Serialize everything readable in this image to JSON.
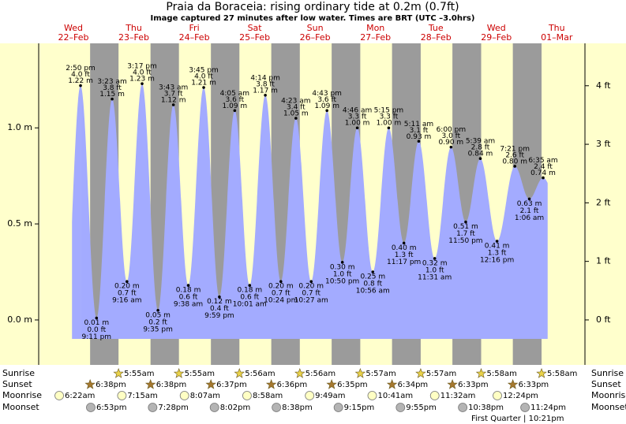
{
  "chart_data": {
    "type": "tide",
    "title": "Praia da Boraceia: rising  ordinary tide at 0.2m (0.7ft)",
    "subtitle": "Image captured 27 minutes after low water. Times are BRT (UTC –3.0hrs)",
    "xlim": [
      -1.8,
      215.2
    ],
    "ylim": [
      -0.234,
      1.44
    ],
    "yticks": [
      {
        "value": 0,
        "label": "0.0 m"
      },
      {
        "value": 0.5,
        "label": "0.5 m"
      },
      {
        "value": 1,
        "label": "1.0 m"
      }
    ],
    "y2lim": [
      -0.768,
      4.724
    ],
    "y2ticks": [
      {
        "value": 0,
        "label": "0 ft"
      },
      {
        "value": 1,
        "label": "1 ft"
      },
      {
        "value": 2,
        "label": "2 ft"
      },
      {
        "value": 3,
        "label": "3 ft"
      },
      {
        "value": 4,
        "label": "4 ft"
      }
    ],
    "colors": {
      "water": "#a3abff",
      "day": "#ffffcc",
      "night": "#9b9b9b",
      "day_label": "#cc0000"
    },
    "row_labels": {
      "sunrise": "Sunrise",
      "sunset": "Sunset",
      "moonrise": "Moonrise",
      "moonset": "Moonset"
    },
    "days": [
      {
        "weekday": "Wed",
        "date": "22–Feb",
        "sunset": "6:38pm",
        "moonrise": "6:22am",
        "moonset": "6:53pm",
        "tides": [
          {
            "time": "2:50 pm",
            "height": 1.22,
            "height_label": "1.22 m",
            "height_ft_label": "4.0 ft"
          },
          {
            "time": "9:11 pm",
            "height": 0.01,
            "height_label": "0.01 m",
            "height_ft_label": "0.0 ft"
          }
        ]
      },
      {
        "weekday": "Thu",
        "date": "23–Feb",
        "sunrise": "5:55am",
        "sunset": "6:38pm",
        "moonrise": "7:15am",
        "moonset": "7:28pm",
        "tides": [
          {
            "time": "3:23 am",
            "height": 1.15,
            "height_label": "1.15 m",
            "height_ft_label": "3.8 ft"
          },
          {
            "time": "9:16 am",
            "height": 0.2,
            "height_label": "0.20 m",
            "height_ft_label": "0.7 ft"
          },
          {
            "time": "3:17 pm",
            "height": 1.23,
            "height_label": "1.23 m",
            "height_ft_label": "4.0 ft"
          },
          {
            "time": "9:35 pm",
            "height": 0.05,
            "height_label": "0.05 m",
            "height_ft_label": "0.2 ft"
          }
        ]
      },
      {
        "weekday": "Fri",
        "date": "24–Feb",
        "sunrise": "5:55am",
        "sunset": "6:37pm",
        "moonrise": "8:07am",
        "moonset": "8:02pm",
        "tides": [
          {
            "time": "3:43 am",
            "height": 1.12,
            "height_label": "1.12 m",
            "height_ft_label": "3.7 ft"
          },
          {
            "time": "9:38 am",
            "height": 0.18,
            "height_label": "0.18 m",
            "height_ft_label": "0.6 ft"
          },
          {
            "time": "3:45 pm",
            "height": 1.21,
            "height_label": "1.21 m",
            "height_ft_label": "4.0 ft"
          },
          {
            "time": "9:59 pm",
            "height": 0.12,
            "height_label": "0.12 m",
            "height_ft_label": "0.4 ft"
          }
        ]
      },
      {
        "weekday": "Sat",
        "date": "25–Feb",
        "sunrise": "5:56am",
        "sunset": "6:36pm",
        "moonrise": "8:58am",
        "moonset": "8:38pm",
        "tides": [
          {
            "time": "4:05 am",
            "height": 1.09,
            "height_label": "1.09 m",
            "height_ft_label": "3.6 ft"
          },
          {
            "time": "10:01 am",
            "height": 0.18,
            "height_label": "0.18 m",
            "height_ft_label": "0.6 ft"
          },
          {
            "time": "4:14 pm",
            "height": 1.17,
            "height_label": "1.17 m",
            "height_ft_label": "3.8 ft"
          },
          {
            "time": "10:24 pm",
            "height": 0.2,
            "height_label": "0.20 m",
            "height_ft_label": "0.7 ft"
          }
        ]
      },
      {
        "weekday": "Sun",
        "date": "26–Feb",
        "sunrise": "5:56am",
        "sunset": "6:35pm",
        "moonrise": "9:49am",
        "moonset": "9:15pm",
        "tides": [
          {
            "time": "4:23 am",
            "height": 1.05,
            "height_label": "1.05 m",
            "height_ft_label": "3.4 ft"
          },
          {
            "time": "10:27 am",
            "height": 0.2,
            "height_label": "0.20 m",
            "height_ft_label": "0.7 ft"
          },
          {
            "time": "4:43 pm",
            "height": 1.09,
            "height_label": "1.09 m",
            "height_ft_label": "3.6 ft"
          },
          {
            "time": "10:50 pm",
            "height": 0.3,
            "height_label": "0.30 m",
            "height_ft_label": "1.0 ft"
          }
        ]
      },
      {
        "weekday": "Mon",
        "date": "27–Feb",
        "sunrise": "5:57am",
        "sunset": "6:34pm",
        "moonrise": "10:41am",
        "moonset": "9:55pm",
        "tides": [
          {
            "time": "4:46 am",
            "height": 1.0,
            "height_label": "1.00 m",
            "height_ft_label": "3.3 ft"
          },
          {
            "time": "10:56 am",
            "height": 0.25,
            "height_label": "0.25 m",
            "height_ft_label": "0.8 ft"
          },
          {
            "time": "5:15 pm",
            "height": 1.0,
            "height_label": "1.00 m",
            "height_ft_label": "3.3 ft"
          },
          {
            "time": "11:17 pm",
            "height": 0.4,
            "height_label": "0.40 m",
            "height_ft_label": "1.3 ft"
          }
        ]
      },
      {
        "weekday": "Tue",
        "date": "28–Feb",
        "sunrise": "5:57am",
        "sunset": "6:33pm",
        "moonrise": "11:32am",
        "moonset": "10:38pm",
        "tides": [
          {
            "time": "5:11 am",
            "height": 0.93,
            "height_label": "0.93 m",
            "height_ft_label": "3.1 ft"
          },
          {
            "time": "11:31 am",
            "height": 0.32,
            "height_label": "0.32 m",
            "height_ft_label": "1.0 ft"
          },
          {
            "time": "6:00 pm",
            "height": 0.9,
            "height_label": "0.90 m",
            "height_ft_label": "3.0 ft"
          },
          {
            "time": "11:50 pm",
            "height": 0.51,
            "height_label": "0.51 m",
            "height_ft_label": "1.7 ft"
          }
        ]
      },
      {
        "weekday": "Wed",
        "date": "29–Feb",
        "sunrise": "5:58am",
        "sunset": "6:33pm",
        "moonrise": "12:24pm",
        "moonset": "11:24pm",
        "moon_phase": "First Quarter | 10:21pm",
        "tides": [
          {
            "time": "5:39 am",
            "height": 0.84,
            "height_label": "0.84 m",
            "height_ft_label": "2.8 ft"
          },
          {
            "time": "12:16 pm",
            "height": 0.41,
            "height_label": "0.41 m",
            "height_ft_label": "1.3 ft"
          },
          {
            "time": "7:21 pm",
            "height": 0.8,
            "height_label": "0.80 m",
            "height_ft_label": "2.6 ft"
          }
        ]
      },
      {
        "weekday": "Thu",
        "date": "01–Mar",
        "sunrise": "5:58am",
        "tides": [
          {
            "time": "1:06 am",
            "height": 0.63,
            "height_label": "0.63 m",
            "height_ft_label": "2.1 ft"
          },
          {
            "time": "6:35 am",
            "height": 0.74,
            "height_label": "0.74 m",
            "height_ft_label": "2.4 ft"
          }
        ]
      }
    ]
  }
}
